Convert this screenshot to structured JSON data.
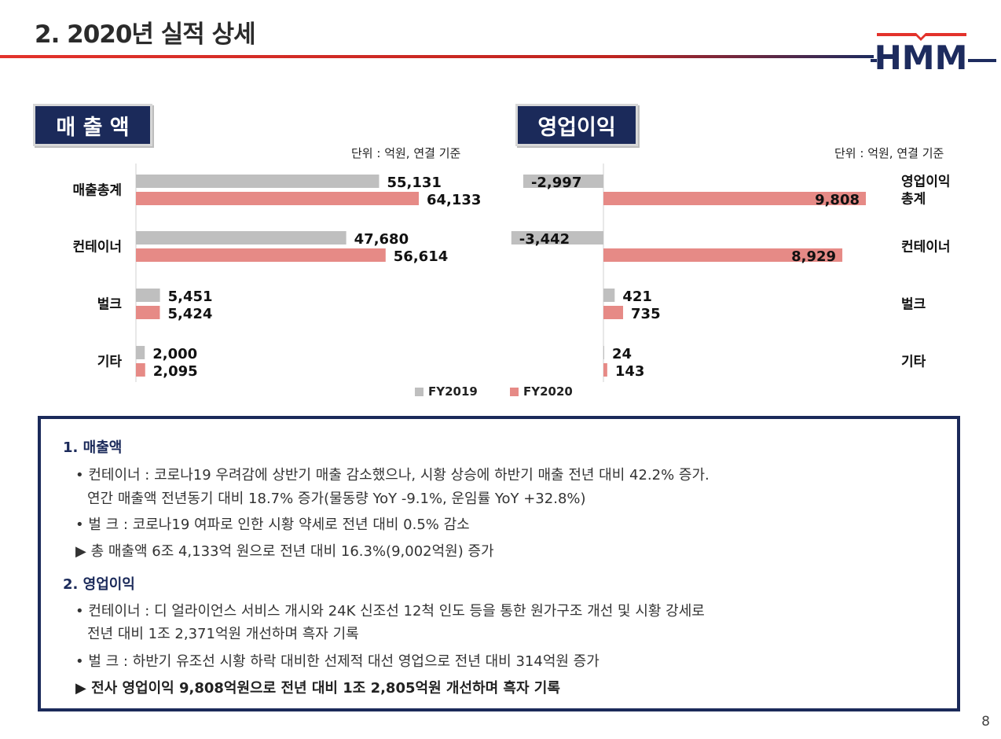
{
  "page": {
    "title": "2. 2020년 실적 상세",
    "page_number": "8"
  },
  "logo": {
    "text": "HMM",
    "colors": {
      "red": "#e3322b",
      "navy": "#1d2b5e"
    }
  },
  "colors": {
    "fy2019": "#bfbfbf",
    "fy2020": "#e68a86",
    "navy": "#1b2a5a"
  },
  "legend": [
    {
      "label": "FY2019",
      "color": "#bfbfbf"
    },
    {
      "label": "FY2020",
      "color": "#e68a86"
    }
  ],
  "chart_data": [
    {
      "type": "bar",
      "orientation": "horizontal",
      "title": "매 출 액",
      "unit": "단위 : 억원, 연결 기준",
      "categories": [
        "매출총계",
        "컨테이너",
        "벌크",
        "기타"
      ],
      "series": [
        {
          "name": "FY2019",
          "values": [
            55131,
            47680,
            5451,
            2000
          ]
        },
        {
          "name": "FY2020",
          "values": [
            64133,
            56614,
            5424,
            2095
          ]
        }
      ],
      "value_labels": {
        "FY2019": [
          "55,131",
          "47,680",
          "5,451",
          "2,000"
        ],
        "FY2020": [
          "64,133",
          "56,614",
          "5,424",
          "2,095"
        ]
      }
    },
    {
      "type": "bar",
      "orientation": "horizontal",
      "title": "영업이익",
      "unit": "단위 : 억원, 연결 기준",
      "categories": [
        "영업이익\n총계",
        "컨테이너",
        "벌크",
        "기타"
      ],
      "series": [
        {
          "name": "FY2019",
          "values": [
            -2997,
            -3442,
            421,
            24
          ]
        },
        {
          "name": "FY2020",
          "values": [
            9808,
            8929,
            735,
            143
          ]
        }
      ],
      "value_labels": {
        "FY2019": [
          "-2,997",
          "-3,442",
          "421",
          "24"
        ],
        "FY2020": [
          "9,808",
          "8,929",
          "735",
          "143"
        ]
      }
    }
  ],
  "summary": {
    "revenue_heading": "1. 매출액",
    "revenue_lines": [
      "• 컨테이너 : 코로나19 우려감에 상반기 매출 감소했으나, 시황 상승에 하반기 매출 전년 대비 42.2% 증가.",
      "연간 매출액 전년동기 대비 18.7% 증가(물동량 YoY -9.1%, 운임률 YoY +32.8%)",
      "• 벌 크 : 코로나19 여파로 인한 시황 약세로 전년 대비 0.5% 감소",
      "▶ 총 매출액 6조 4,133억 원으로 전년 대비 16.3%(9,002억원) 증가"
    ],
    "op_heading": "2. 영업이익",
    "op_lines": [
      "• 컨테이너 : 디 얼라이언스 서비스 개시와 24K 신조선 12척 인도 등을 통한 원가구조 개선 및 시황 강세로",
      "전년 대비 1조 2,371억원 개선하며 흑자 기록",
      "• 벌 크 : 하반기 유조선 시황 하락 대비한 선제적 대선 영업으로 전년 대비 314억원 증가",
      "▶ 전사 영업이익 9,808억원으로 전년 대비 1조 2,805억원 개선하며 흑자 기록"
    ]
  }
}
